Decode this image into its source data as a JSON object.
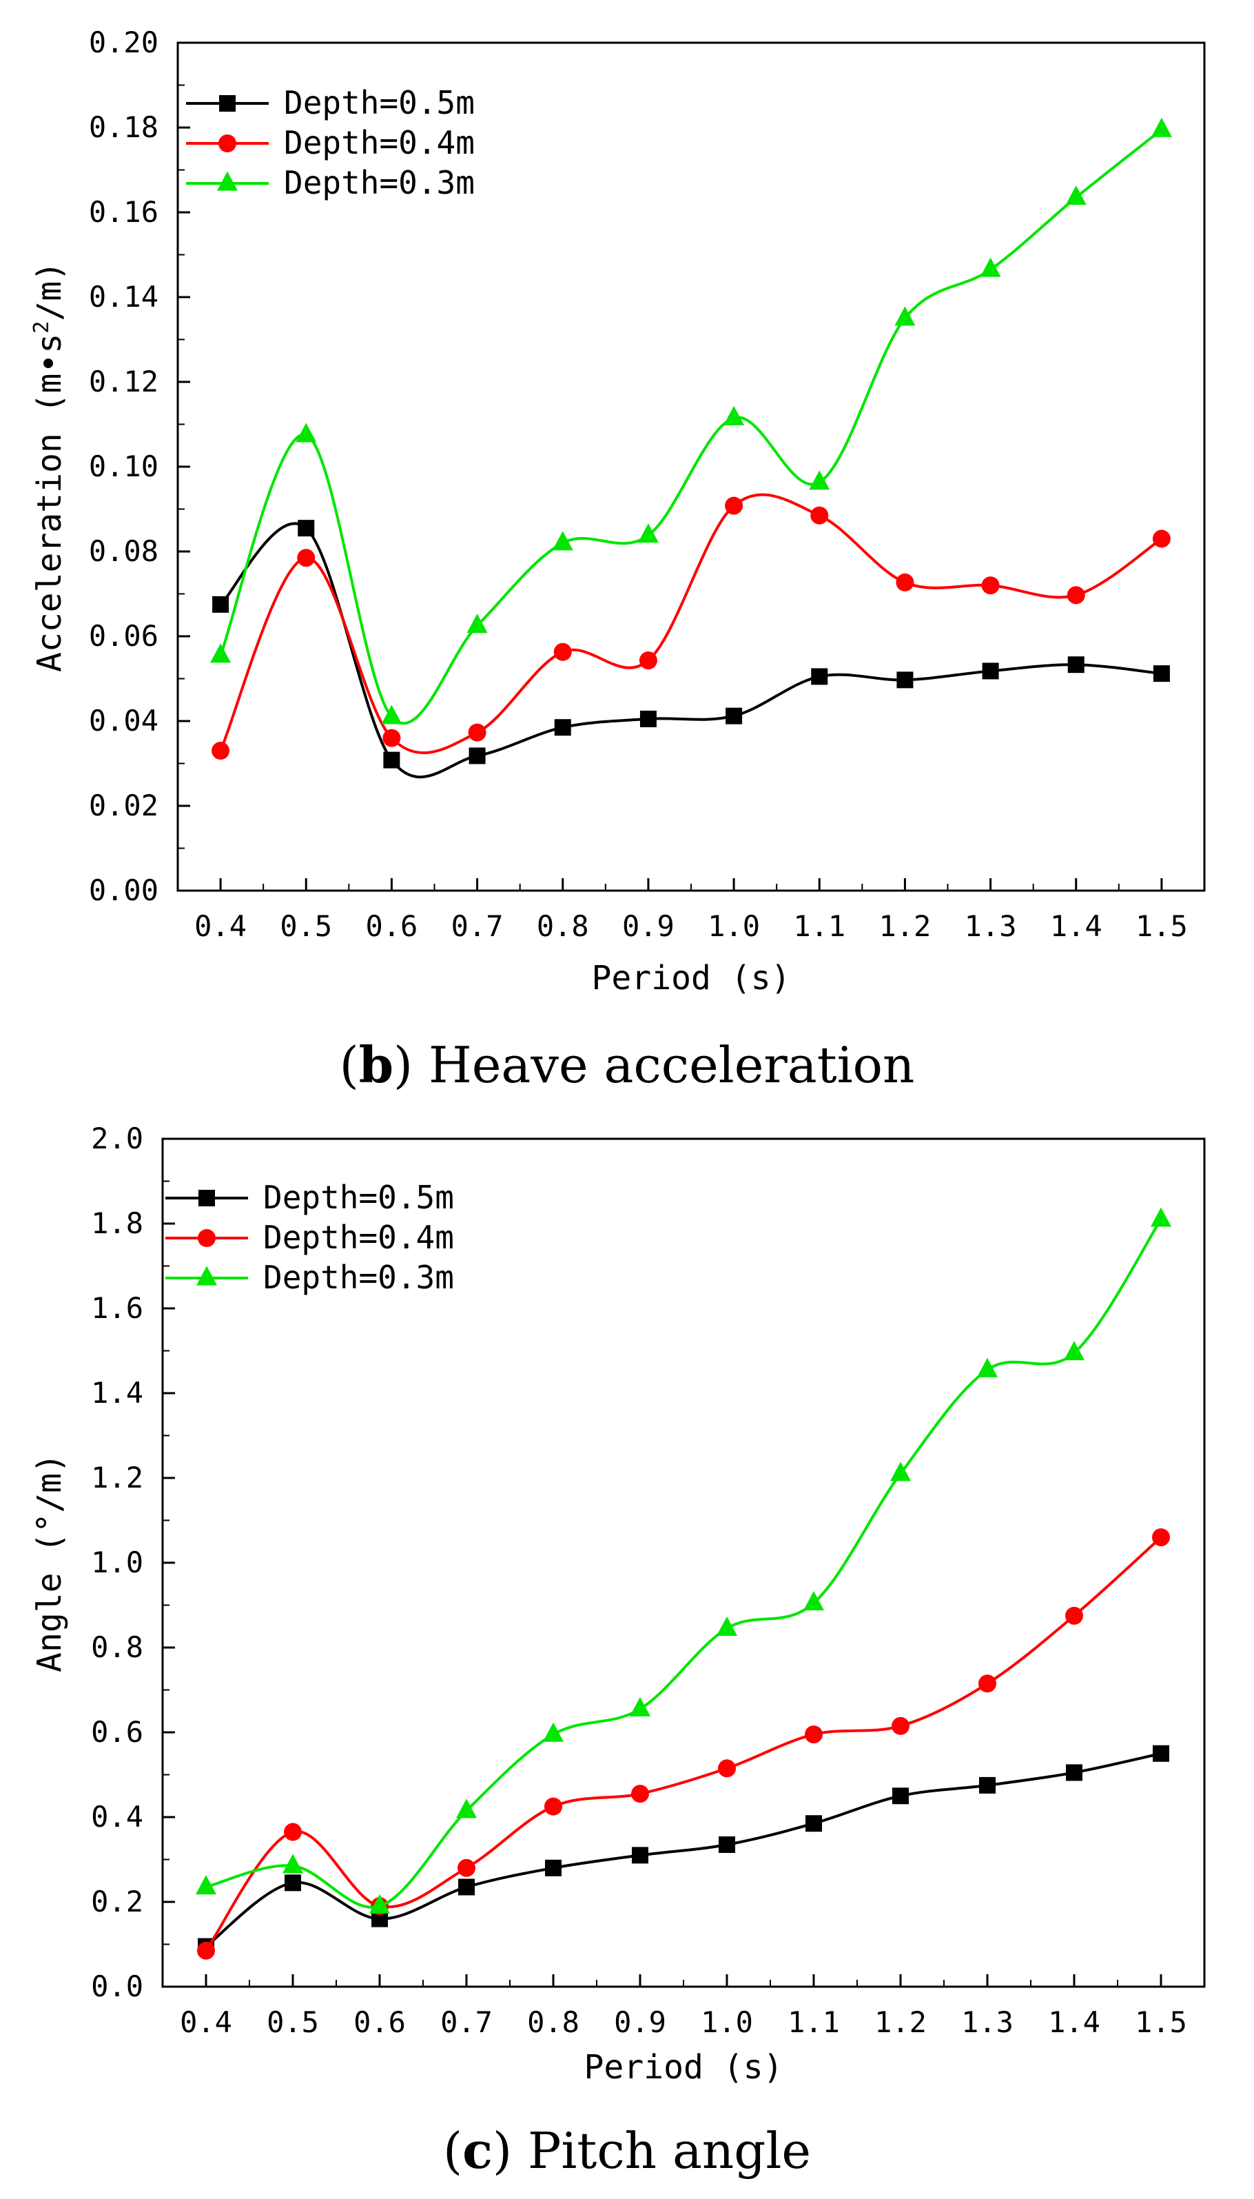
{
  "chart_data": [
    {
      "type": "line",
      "caption_letter": "b",
      "caption_text": "Heave acceleration",
      "xlabel": "Period (s)",
      "ylabel_prefix": "Acceleration (m•s",
      "ylabel_sup": "2",
      "ylabel_suffix": "/m)",
      "xlim": [
        0.35,
        1.55
      ],
      "ylim": [
        0,
        0.2
      ],
      "x_ticks": [
        0.4,
        0.5,
        0.6,
        0.7,
        0.8,
        0.9,
        1.0,
        1.1,
        1.2,
        1.3,
        1.4,
        1.5
      ],
      "x_tick_labels": [
        "0.4",
        "0.5",
        "0.6",
        "0.7",
        "0.8",
        "0.9",
        "1.0",
        "1.1",
        "1.2",
        "1.3",
        "1.4",
        "1.5"
      ],
      "y_ticks": [
        0,
        0.02,
        0.04,
        0.06,
        0.08,
        0.1,
        0.12,
        0.14,
        0.16,
        0.18,
        0.2
      ],
      "y_tick_labels": [
        "0.00",
        "0.02",
        "0.04",
        "0.06",
        "0.08",
        "0.10",
        "0.12",
        "0.14",
        "0.16",
        "0.18",
        "0.20"
      ],
      "legend_position": "top-left",
      "x": [
        0.4,
        0.5,
        0.6,
        0.7,
        0.8,
        0.9,
        1.0,
        1.1,
        1.2,
        1.3,
        1.4,
        1.5
      ],
      "series": [
        {
          "name": "Depth=0.5m",
          "color": "#000000",
          "marker": "square",
          "values": [
            0.0675,
            0.0855,
            0.0308,
            0.0318,
            0.0385,
            0.0405,
            0.0412,
            0.0505,
            0.0497,
            0.0518,
            0.0533,
            0.0512
          ]
        },
        {
          "name": "Depth=0.4m",
          "color": "#ff0000",
          "marker": "circle",
          "values": [
            0.033,
            0.0785,
            0.036,
            0.0373,
            0.0563,
            0.0543,
            0.0908,
            0.0885,
            0.0727,
            0.072,
            0.0697,
            0.083
          ]
        },
        {
          "name": "Depth=0.3m",
          "color": "#00e600",
          "marker": "triangle",
          "values": [
            0.0555,
            0.1075,
            0.041,
            0.0625,
            0.082,
            0.0838,
            0.1115,
            0.0963,
            0.135,
            0.1465,
            0.1635,
            0.1795
          ]
        }
      ]
    },
    {
      "type": "line",
      "caption_letter": "c",
      "caption_text": "Pitch angle",
      "xlabel": "Period (s)",
      "ylabel_prefix": "Angle (°/m)",
      "ylabel_sup": "",
      "ylabel_suffix": "",
      "xlim": [
        0.35,
        1.55
      ],
      "ylim": [
        0,
        2.0
      ],
      "x_ticks": [
        0.4,
        0.5,
        0.6,
        0.7,
        0.8,
        0.9,
        1.0,
        1.1,
        1.2,
        1.3,
        1.4,
        1.5
      ],
      "x_tick_labels": [
        "0.4",
        "0.5",
        "0.6",
        "0.7",
        "0.8",
        "0.9",
        "1.0",
        "1.1",
        "1.2",
        "1.3",
        "1.4",
        "1.5"
      ],
      "y_ticks": [
        0,
        0.2,
        0.4,
        0.6,
        0.8,
        1.0,
        1.2,
        1.4,
        1.6,
        1.8,
        2.0
      ],
      "y_tick_labels": [
        "0.0",
        "0.2",
        "0.4",
        "0.6",
        "0.8",
        "1.0",
        "1.2",
        "1.4",
        "1.6",
        "1.8",
        "2.0"
      ],
      "legend_position": "top-left",
      "x": [
        0.4,
        0.5,
        0.6,
        0.7,
        0.8,
        0.9,
        1.0,
        1.1,
        1.2,
        1.3,
        1.4,
        1.5
      ],
      "series": [
        {
          "name": "Depth=0.5m",
          "color": "#000000",
          "marker": "square",
          "values": [
            0.095,
            0.245,
            0.16,
            0.235,
            0.28,
            0.31,
            0.335,
            0.385,
            0.45,
            0.475,
            0.505,
            0.55
          ]
        },
        {
          "name": "Depth=0.4m",
          "color": "#ff0000",
          "marker": "circle",
          "values": [
            0.085,
            0.365,
            0.19,
            0.28,
            0.425,
            0.455,
            0.515,
            0.595,
            0.615,
            0.715,
            0.875,
            1.06
          ]
        },
        {
          "name": "Depth=0.3m",
          "color": "#00e600",
          "marker": "triangle",
          "values": [
            0.235,
            0.285,
            0.19,
            0.415,
            0.595,
            0.655,
            0.845,
            0.905,
            1.21,
            1.455,
            1.495,
            1.81
          ]
        }
      ]
    }
  ]
}
